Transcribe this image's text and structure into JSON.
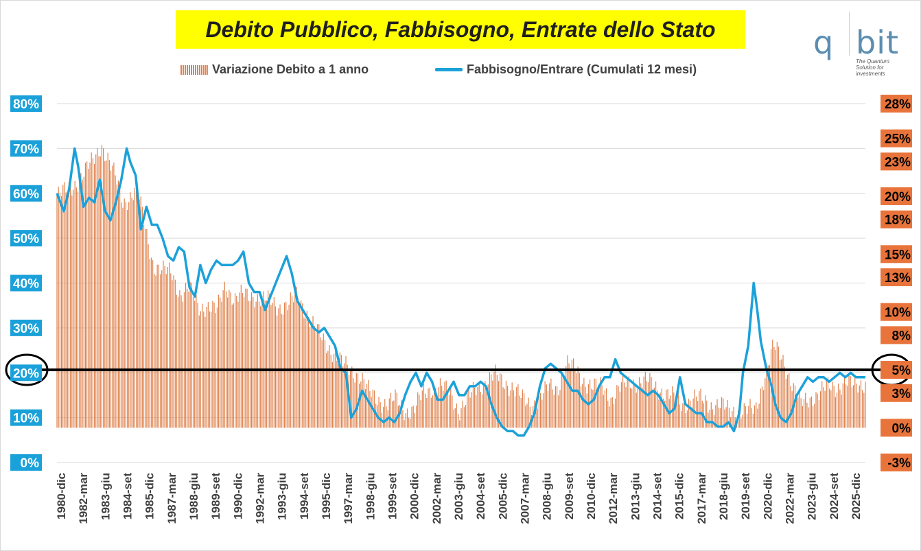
{
  "colors": {
    "title_bg": "#ffff00",
    "bar": "#e0834e",
    "line": "#1ba1d9",
    "left_axis_label_bg": "#1ba1d9",
    "right_axis_label_bg": "#e8743b",
    "reference_line": "#000000",
    "grid": "#d9d9d9"
  },
  "logo": {
    "q": "q",
    "bit": "bit",
    "tagline": "The Quantum Solution for investments"
  },
  "chart_data": {
    "type": "bar+line",
    "title": "Debito Pubblico, Fabbisogno, Entrate dello Stato",
    "legend_position": "top",
    "grid": "horizontal",
    "x_range": [
      1980.92,
      2025.92
    ],
    "x_tick_labels": [
      "1980-dic",
      "1982-mar",
      "1983-giu",
      "1984-set",
      "1985-dic",
      "1987-mar",
      "1988-giu",
      "1989-set",
      "1990-dic",
      "1992-mar",
      "1993-giu",
      "1994-set",
      "1995-dic",
      "1997-mar",
      "1998-giu",
      "1999-set",
      "2000-dic",
      "2002-mar",
      "2003-giu",
      "2004-set",
      "2005-dic",
      "2007-mar",
      "2008-giu",
      "2009-set",
      "2010-dic",
      "2012-mar",
      "2013-giu",
      "2014-set",
      "2015-dic",
      "2017-mar",
      "2018-giu",
      "2019-set",
      "2020-dic",
      "2022-mar",
      "2023-giu",
      "2024-set",
      "2025-dic"
    ],
    "y_left": {
      "ticks": [
        "0%",
        "10%",
        "20%",
        "30%",
        "40%",
        "50%",
        "60%",
        "70%",
        "80%"
      ],
      "range": [
        0,
        80
      ]
    },
    "y_right": {
      "ticks": [
        "-3%",
        "0%",
        "3%",
        "5%",
        "8%",
        "10%",
        "13%",
        "15%",
        "18%",
        "20%",
        "23%",
        "25%",
        "28%"
      ],
      "range": [
        -3,
        28
      ]
    },
    "reference_line": {
      "axis": "right",
      "value": 5
    },
    "series": [
      {
        "name": "Variazione Debito a 1 anno",
        "type": "bar",
        "axis": "right",
        "points": [
          [
            1980.92,
            20.0
          ],
          [
            1981.5,
            20.5
          ],
          [
            1982.2,
            21.5
          ],
          [
            1982.9,
            23.0
          ],
          [
            1983.4,
            24.5
          ],
          [
            1983.8,
            23.0
          ],
          [
            1984.2,
            21.5
          ],
          [
            1984.6,
            19.5
          ],
          [
            1985.0,
            20.0
          ],
          [
            1985.4,
            20.5
          ],
          [
            1985.8,
            17.5
          ],
          [
            1986.3,
            14.0
          ],
          [
            1986.8,
            13.5
          ],
          [
            1987.3,
            13.5
          ],
          [
            1987.8,
            11.5
          ],
          [
            1988.3,
            12.0
          ],
          [
            1988.8,
            10.5
          ],
          [
            1989.3,
            10.5
          ],
          [
            1989.8,
            10.0
          ],
          [
            1990.3,
            12.5
          ],
          [
            1990.8,
            11.0
          ],
          [
            1991.3,
            11.5
          ],
          [
            1991.8,
            11.5
          ],
          [
            1992.3,
            11.0
          ],
          [
            1992.8,
            11.0
          ],
          [
            1993.3,
            10.5
          ],
          [
            1993.8,
            10.5
          ],
          [
            1994.3,
            11.5
          ],
          [
            1994.8,
            10.0
          ],
          [
            1995.3,
            8.5
          ],
          [
            1995.8,
            7.5
          ],
          [
            1996.3,
            6.5
          ],
          [
            1996.8,
            5.5
          ],
          [
            1997.3,
            5.0
          ],
          [
            1997.8,
            4.5
          ],
          [
            1998.3,
            3.0
          ],
          [
            1998.8,
            2.5
          ],
          [
            1999.3,
            2.0
          ],
          [
            1999.8,
            2.5
          ],
          [
            2000.3,
            1.5
          ],
          [
            2000.8,
            1.5
          ],
          [
            2001.3,
            3.0
          ],
          [
            2001.8,
            3.5
          ],
          [
            2002.3,
            3.5
          ],
          [
            2002.8,
            3.0
          ],
          [
            2003.3,
            1.5
          ],
          [
            2003.8,
            2.5
          ],
          [
            2004.3,
            3.5
          ],
          [
            2004.8,
            4.0
          ],
          [
            2005.3,
            4.5
          ],
          [
            2005.8,
            4.0
          ],
          [
            2006.3,
            3.5
          ],
          [
            2006.8,
            2.5
          ],
          [
            2007.3,
            2.0
          ],
          [
            2007.8,
            2.5
          ],
          [
            2008.3,
            3.5
          ],
          [
            2008.8,
            3.5
          ],
          [
            2009.3,
            5.5
          ],
          [
            2009.8,
            5.0
          ],
          [
            2010.3,
            4.0
          ],
          [
            2010.8,
            3.5
          ],
          [
            2011.3,
            3.5
          ],
          [
            2011.8,
            2.5
          ],
          [
            2012.3,
            3.5
          ],
          [
            2012.8,
            4.0
          ],
          [
            2013.3,
            4.0
          ],
          [
            2013.8,
            4.0
          ],
          [
            2014.3,
            3.5
          ],
          [
            2014.8,
            3.0
          ],
          [
            2015.3,
            2.5
          ],
          [
            2015.8,
            2.0
          ],
          [
            2016.3,
            2.5
          ],
          [
            2016.8,
            2.5
          ],
          [
            2017.3,
            2.0
          ],
          [
            2017.8,
            2.0
          ],
          [
            2018.3,
            1.5
          ],
          [
            2018.8,
            1.5
          ],
          [
            2019.3,
            1.5
          ],
          [
            2019.8,
            1.5
          ],
          [
            2020.3,
            4.5
          ],
          [
            2020.8,
            7.0
          ],
          [
            2021.3,
            6.0
          ],
          [
            2021.8,
            4.0
          ],
          [
            2022.3,
            2.0
          ],
          [
            2022.8,
            2.5
          ],
          [
            2023.3,
            3.0
          ],
          [
            2023.8,
            3.5
          ],
          [
            2024.3,
            3.5
          ],
          [
            2024.8,
            4.0
          ],
          [
            2025.3,
            3.5
          ],
          [
            2025.92,
            4.0
          ]
        ]
      },
      {
        "name": "Fabbisogno/Entrare (Cumulati 12 mesi)",
        "type": "line",
        "axis": "left",
        "points": [
          [
            1980.92,
            60
          ],
          [
            1981.3,
            56
          ],
          [
            1981.6,
            61
          ],
          [
            1981.9,
            70
          ],
          [
            1982.1,
            66
          ],
          [
            1982.4,
            57
          ],
          [
            1982.7,
            59
          ],
          [
            1983.0,
            58
          ],
          [
            1983.3,
            63
          ],
          [
            1983.6,
            56
          ],
          [
            1983.9,
            54
          ],
          [
            1984.2,
            58
          ],
          [
            1984.5,
            63
          ],
          [
            1984.8,
            70
          ],
          [
            1985.0,
            67
          ],
          [
            1985.3,
            64
          ],
          [
            1985.6,
            52
          ],
          [
            1985.9,
            57
          ],
          [
            1986.2,
            53
          ],
          [
            1986.5,
            53
          ],
          [
            1986.8,
            50
          ],
          [
            1987.1,
            46
          ],
          [
            1987.4,
            45
          ],
          [
            1987.7,
            48
          ],
          [
            1988.0,
            47
          ],
          [
            1988.3,
            39
          ],
          [
            1988.6,
            37
          ],
          [
            1988.9,
            44
          ],
          [
            1989.2,
            40
          ],
          [
            1989.5,
            43
          ],
          [
            1989.8,
            45
          ],
          [
            1990.1,
            44
          ],
          [
            1990.4,
            44
          ],
          [
            1990.7,
            44
          ],
          [
            1991.0,
            45
          ],
          [
            1991.3,
            47
          ],
          [
            1991.6,
            40
          ],
          [
            1991.9,
            38
          ],
          [
            1992.2,
            38
          ],
          [
            1992.5,
            34
          ],
          [
            1992.8,
            37
          ],
          [
            1993.1,
            40
          ],
          [
            1993.4,
            43
          ],
          [
            1993.7,
            46
          ],
          [
            1994.0,
            42
          ],
          [
            1994.3,
            36
          ],
          [
            1994.6,
            34
          ],
          [
            1994.9,
            32
          ],
          [
            1995.2,
            30
          ],
          [
            1995.5,
            29
          ],
          [
            1995.8,
            30
          ],
          [
            1996.1,
            28
          ],
          [
            1996.4,
            26
          ],
          [
            1996.7,
            21
          ],
          [
            1997.0,
            20
          ],
          [
            1997.3,
            10
          ],
          [
            1997.6,
            12
          ],
          [
            1997.9,
            16
          ],
          [
            1998.2,
            14
          ],
          [
            1998.5,
            12
          ],
          [
            1998.8,
            10
          ],
          [
            1999.1,
            9
          ],
          [
            1999.4,
            10
          ],
          [
            1999.7,
            9
          ],
          [
            2000.0,
            11
          ],
          [
            2000.3,
            15
          ],
          [
            2000.6,
            18
          ],
          [
            2000.9,
            20
          ],
          [
            2001.2,
            17
          ],
          [
            2001.5,
            20
          ],
          [
            2001.8,
            18
          ],
          [
            2002.1,
            14
          ],
          [
            2002.4,
            14
          ],
          [
            2002.7,
            16
          ],
          [
            2003.0,
            18
          ],
          [
            2003.3,
            15
          ],
          [
            2003.6,
            15
          ],
          [
            2003.9,
            17
          ],
          [
            2004.2,
            17
          ],
          [
            2004.5,
            18
          ],
          [
            2004.8,
            17
          ],
          [
            2005.1,
            13
          ],
          [
            2005.4,
            10
          ],
          [
            2005.7,
            8
          ],
          [
            2006.0,
            7
          ],
          [
            2006.3,
            7
          ],
          [
            2006.6,
            6
          ],
          [
            2006.9,
            6
          ],
          [
            2007.2,
            8
          ],
          [
            2007.5,
            11
          ],
          [
            2007.8,
            17
          ],
          [
            2008.1,
            21
          ],
          [
            2008.4,
            22
          ],
          [
            2008.7,
            21
          ],
          [
            2009.0,
            20
          ],
          [
            2009.3,
            18
          ],
          [
            2009.6,
            16
          ],
          [
            2009.9,
            16
          ],
          [
            2010.2,
            14
          ],
          [
            2010.5,
            13
          ],
          [
            2010.8,
            14
          ],
          [
            2011.1,
            17
          ],
          [
            2011.4,
            19
          ],
          [
            2011.7,
            19
          ],
          [
            2012.0,
            23
          ],
          [
            2012.3,
            20
          ],
          [
            2012.6,
            19
          ],
          [
            2012.9,
            18
          ],
          [
            2013.2,
            17
          ],
          [
            2013.5,
            16
          ],
          [
            2013.8,
            15
          ],
          [
            2014.1,
            16
          ],
          [
            2014.4,
            15
          ],
          [
            2014.7,
            13
          ],
          [
            2015.0,
            11
          ],
          [
            2015.3,
            12
          ],
          [
            2015.6,
            19
          ],
          [
            2015.9,
            13
          ],
          [
            2016.2,
            12
          ],
          [
            2016.5,
            11
          ],
          [
            2016.8,
            11
          ],
          [
            2017.1,
            9
          ],
          [
            2017.4,
            9
          ],
          [
            2017.7,
            8
          ],
          [
            2018.0,
            8
          ],
          [
            2018.3,
            9
          ],
          [
            2018.6,
            7
          ],
          [
            2018.9,
            11
          ],
          [
            2019.1,
            20
          ],
          [
            2019.4,
            26
          ],
          [
            2019.7,
            40
          ],
          [
            2019.9,
            34
          ],
          [
            2020.1,
            27
          ],
          [
            2020.4,
            21
          ],
          [
            2020.7,
            17
          ],
          [
            2020.9,
            13
          ],
          [
            2021.2,
            10
          ],
          [
            2021.5,
            9
          ],
          [
            2021.8,
            11
          ],
          [
            2022.1,
            15
          ],
          [
            2022.4,
            17
          ],
          [
            2022.7,
            19
          ],
          [
            2023.0,
            18
          ],
          [
            2023.3,
            19
          ],
          [
            2023.6,
            19
          ],
          [
            2023.9,
            18
          ],
          [
            2024.2,
            19
          ],
          [
            2024.5,
            20
          ],
          [
            2024.8,
            19
          ],
          [
            2025.1,
            20
          ],
          [
            2025.4,
            19
          ],
          [
            2025.92,
            19
          ]
        ]
      }
    ]
  }
}
